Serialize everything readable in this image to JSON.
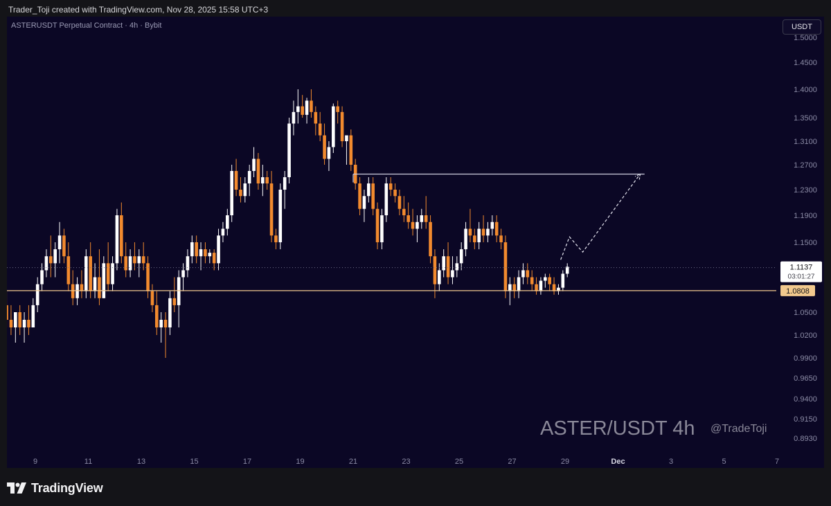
{
  "header": {
    "credit": "Trader_Toji created with TradingView.com, Nov 28, 2025 15:58 UTC+3"
  },
  "chart_header": {
    "symbol_title": "ASTERUSDT Perpetual Contract · 4h · Bybit",
    "unit_button": "USDT"
  },
  "watermark": {
    "pair": "ASTER/USDT 4h",
    "author": "@TradeToji"
  },
  "footer": {
    "brand": "TradingView"
  },
  "colors": {
    "background": "#0b0725",
    "bull": "#ffffff",
    "bear": "#f28a2e",
    "support_line": "#f2c98e",
    "resistance_line": "#cfcfe0",
    "axis_text": "#8c8ca6"
  },
  "chart_data": {
    "type": "candlestick",
    "title": "ASTERUSDT Perpetual Contract · 4h · Bybit",
    "y_ticks": [
      "1.5000",
      "1.4500",
      "1.4000",
      "1.3500",
      "1.3100",
      "1.2700",
      "1.2300",
      "1.1900",
      "1.1500",
      "1.0500",
      "1.0200",
      "0.9900",
      "0.9650",
      "0.9400",
      "0.9150",
      "0.8930"
    ],
    "x_ticks": [
      "9",
      "11",
      "13",
      "15",
      "17",
      "19",
      "21",
      "23",
      "25",
      "27",
      "29",
      "Dec",
      "3",
      "5",
      "7"
    ],
    "x_range": [
      "Nov 7 12:00",
      "Dec 8 00:00"
    ],
    "current_price": {
      "value": "1.1137",
      "countdown": "03:01:27"
    },
    "support": {
      "value": "1.0808",
      "label": "1.0808"
    },
    "resistance": {
      "value": 1.255,
      "from": "Nov 21 00:00",
      "to": "Dec 2 00:00"
    },
    "projection": [
      {
        "time": "Nov 28 20:00",
        "value": 1.125
      },
      {
        "time": "Nov 29 04:00",
        "value": 1.158
      },
      {
        "time": "Nov 29 16:00",
        "value": 1.136
      },
      {
        "time": "Dec 1 20:00",
        "value": 1.255
      }
    ],
    "candles": [
      {
        "o": 1.15,
        "h": 1.16,
        "l": 1.09,
        "c": 1.09
      },
      {
        "o": 1.09,
        "h": 1.1,
        "l": 1.05,
        "c": 1.06
      },
      {
        "o": 1.06,
        "h": 1.08,
        "l": 1.03,
        "c": 1.04
      },
      {
        "o": 1.04,
        "h": 1.06,
        "l": 1.02,
        "c": 1.03
      },
      {
        "o": 1.03,
        "h": 1.05,
        "l": 1.01,
        "c": 1.05
      },
      {
        "o": 1.05,
        "h": 1.06,
        "l": 1.02,
        "c": 1.03
      },
      {
        "o": 1.03,
        "h": 1.05,
        "l": 1.01,
        "c": 1.04
      },
      {
        "o": 1.04,
        "h": 1.06,
        "l": 1.02,
        "c": 1.03
      },
      {
        "o": 1.03,
        "h": 1.07,
        "l": 1.03,
        "c": 1.06
      },
      {
        "o": 1.06,
        "h": 1.1,
        "l": 1.05,
        "c": 1.09
      },
      {
        "o": 1.09,
        "h": 1.12,
        "l": 1.08,
        "c": 1.11
      },
      {
        "o": 1.11,
        "h": 1.14,
        "l": 1.1,
        "c": 1.13
      },
      {
        "o": 1.13,
        "h": 1.16,
        "l": 1.1,
        "c": 1.12
      },
      {
        "o": 1.12,
        "h": 1.15,
        "l": 1.1,
        "c": 1.14
      },
      {
        "o": 1.14,
        "h": 1.18,
        "l": 1.12,
        "c": 1.16
      },
      {
        "o": 1.16,
        "h": 1.17,
        "l": 1.12,
        "c": 1.13
      },
      {
        "o": 1.13,
        "h": 1.15,
        "l": 1.08,
        "c": 1.09
      },
      {
        "o": 1.09,
        "h": 1.11,
        "l": 1.06,
        "c": 1.07
      },
      {
        "o": 1.07,
        "h": 1.1,
        "l": 1.06,
        "c": 1.09
      },
      {
        "o": 1.09,
        "h": 1.11,
        "l": 1.07,
        "c": 1.08
      },
      {
        "o": 1.08,
        "h": 1.14,
        "l": 1.07,
        "c": 1.13
      },
      {
        "o": 1.13,
        "h": 1.15,
        "l": 1.07,
        "c": 1.08
      },
      {
        "o": 1.08,
        "h": 1.12,
        "l": 1.07,
        "c": 1.1
      },
      {
        "o": 1.1,
        "h": 1.14,
        "l": 1.06,
        "c": 1.07
      },
      {
        "o": 1.07,
        "h": 1.13,
        "l": 1.07,
        "c": 1.12
      },
      {
        "o": 1.12,
        "h": 1.15,
        "l": 1.08,
        "c": 1.09
      },
      {
        "o": 1.09,
        "h": 1.13,
        "l": 1.08,
        "c": 1.12
      },
      {
        "o": 1.12,
        "h": 1.2,
        "l": 1.11,
        "c": 1.19
      },
      {
        "o": 1.19,
        "h": 1.21,
        "l": 1.12,
        "c": 1.13
      },
      {
        "o": 1.13,
        "h": 1.15,
        "l": 1.1,
        "c": 1.11
      },
      {
        "o": 1.11,
        "h": 1.14,
        "l": 1.1,
        "c": 1.13
      },
      {
        "o": 1.13,
        "h": 1.15,
        "l": 1.11,
        "c": 1.12
      },
      {
        "o": 1.12,
        "h": 1.14,
        "l": 1.1,
        "c": 1.13
      },
      {
        "o": 1.13,
        "h": 1.15,
        "l": 1.11,
        "c": 1.12
      },
      {
        "o": 1.12,
        "h": 1.13,
        "l": 1.07,
        "c": 1.08
      },
      {
        "o": 1.08,
        "h": 1.09,
        "l": 1.05,
        "c": 1.06
      },
      {
        "o": 1.06,
        "h": 1.08,
        "l": 1.02,
        "c": 1.03
      },
      {
        "o": 1.03,
        "h": 1.05,
        "l": 1.01,
        "c": 1.04
      },
      {
        "o": 1.04,
        "h": 1.05,
        "l": 0.99,
        "c": 1.03
      },
      {
        "o": 1.03,
        "h": 1.08,
        "l": 1.02,
        "c": 1.07
      },
      {
        "o": 1.07,
        "h": 1.1,
        "l": 1.05,
        "c": 1.06
      },
      {
        "o": 1.06,
        "h": 1.11,
        "l": 1.03,
        "c": 1.1
      },
      {
        "o": 1.1,
        "h": 1.12,
        "l": 1.08,
        "c": 1.11
      },
      {
        "o": 1.11,
        "h": 1.14,
        "l": 1.1,
        "c": 1.13
      },
      {
        "o": 1.13,
        "h": 1.16,
        "l": 1.12,
        "c": 1.15
      },
      {
        "o": 1.15,
        "h": 1.16,
        "l": 1.12,
        "c": 1.13
      },
      {
        "o": 1.13,
        "h": 1.15,
        "l": 1.11,
        "c": 1.14
      },
      {
        "o": 1.14,
        "h": 1.15,
        "l": 1.12,
        "c": 1.13
      },
      {
        "o": 1.13,
        "h": 1.14,
        "l": 1.12,
        "c": 1.135
      },
      {
        "o": 1.135,
        "h": 1.14,
        "l": 1.11,
        "c": 1.12
      },
      {
        "o": 1.12,
        "h": 1.17,
        "l": 1.11,
        "c": 1.16
      },
      {
        "o": 1.16,
        "h": 1.18,
        "l": 1.15,
        "c": 1.17
      },
      {
        "o": 1.17,
        "h": 1.2,
        "l": 1.16,
        "c": 1.19
      },
      {
        "o": 1.19,
        "h": 1.27,
        "l": 1.18,
        "c": 1.26
      },
      {
        "o": 1.26,
        "h": 1.28,
        "l": 1.22,
        "c": 1.23
      },
      {
        "o": 1.23,
        "h": 1.25,
        "l": 1.21,
        "c": 1.22
      },
      {
        "o": 1.22,
        "h": 1.25,
        "l": 1.21,
        "c": 1.24
      },
      {
        "o": 1.24,
        "h": 1.27,
        "l": 1.22,
        "c": 1.26
      },
      {
        "o": 1.26,
        "h": 1.3,
        "l": 1.25,
        "c": 1.28
      },
      {
        "o": 1.28,
        "h": 1.29,
        "l": 1.23,
        "c": 1.24
      },
      {
        "o": 1.24,
        "h": 1.27,
        "l": 1.22,
        "c": 1.25
      },
      {
        "o": 1.25,
        "h": 1.26,
        "l": 1.23,
        "c": 1.24
      },
      {
        "o": 1.24,
        "h": 1.26,
        "l": 1.15,
        "c": 1.16
      },
      {
        "o": 1.16,
        "h": 1.17,
        "l": 1.14,
        "c": 1.15
      },
      {
        "o": 1.15,
        "h": 1.24,
        "l": 1.14,
        "c": 1.23
      },
      {
        "o": 1.23,
        "h": 1.26,
        "l": 1.2,
        "c": 1.25
      },
      {
        "o": 1.25,
        "h": 1.35,
        "l": 1.24,
        "c": 1.34
      },
      {
        "o": 1.34,
        "h": 1.38,
        "l": 1.32,
        "c": 1.36
      },
      {
        "o": 1.36,
        "h": 1.4,
        "l": 1.34,
        "c": 1.37
      },
      {
        "o": 1.37,
        "h": 1.39,
        "l": 1.35,
        "c": 1.355
      },
      {
        "o": 1.355,
        "h": 1.385,
        "l": 1.34,
        "c": 1.38
      },
      {
        "o": 1.38,
        "h": 1.4,
        "l": 1.35,
        "c": 1.36
      },
      {
        "o": 1.36,
        "h": 1.37,
        "l": 1.32,
        "c": 1.34
      },
      {
        "o": 1.34,
        "h": 1.36,
        "l": 1.31,
        "c": 1.32
      },
      {
        "o": 1.32,
        "h": 1.34,
        "l": 1.27,
        "c": 1.28
      },
      {
        "o": 1.28,
        "h": 1.31,
        "l": 1.26,
        "c": 1.3
      },
      {
        "o": 1.3,
        "h": 1.375,
        "l": 1.29,
        "c": 1.37
      },
      {
        "o": 1.37,
        "h": 1.38,
        "l": 1.34,
        "c": 1.36
      },
      {
        "o": 1.36,
        "h": 1.37,
        "l": 1.3,
        "c": 1.31
      },
      {
        "o": 1.31,
        "h": 1.32,
        "l": 1.27,
        "c": 1.32
      },
      {
        "o": 1.32,
        "h": 1.33,
        "l": 1.26,
        "c": 1.27
      },
      {
        "o": 1.27,
        "h": 1.28,
        "l": 1.23,
        "c": 1.24
      },
      {
        "o": 1.24,
        "h": 1.25,
        "l": 1.19,
        "c": 1.2
      },
      {
        "o": 1.2,
        "h": 1.23,
        "l": 1.18,
        "c": 1.22
      },
      {
        "o": 1.22,
        "h": 1.25,
        "l": 1.21,
        "c": 1.24
      },
      {
        "o": 1.24,
        "h": 1.25,
        "l": 1.19,
        "c": 1.2
      },
      {
        "o": 1.2,
        "h": 1.21,
        "l": 1.14,
        "c": 1.15
      },
      {
        "o": 1.15,
        "h": 1.2,
        "l": 1.14,
        "c": 1.19
      },
      {
        "o": 1.19,
        "h": 1.25,
        "l": 1.18,
        "c": 1.24
      },
      {
        "o": 1.24,
        "h": 1.25,
        "l": 1.22,
        "c": 1.23
      },
      {
        "o": 1.23,
        "h": 1.24,
        "l": 1.21,
        "c": 1.22
      },
      {
        "o": 1.22,
        "h": 1.23,
        "l": 1.19,
        "c": 1.2
      },
      {
        "o": 1.2,
        "h": 1.22,
        "l": 1.18,
        "c": 1.19
      },
      {
        "o": 1.19,
        "h": 1.21,
        "l": 1.17,
        "c": 1.18
      },
      {
        "o": 1.18,
        "h": 1.2,
        "l": 1.16,
        "c": 1.17
      },
      {
        "o": 1.17,
        "h": 1.19,
        "l": 1.15,
        "c": 1.18
      },
      {
        "o": 1.18,
        "h": 1.2,
        "l": 1.17,
        "c": 1.19
      },
      {
        "o": 1.19,
        "h": 1.22,
        "l": 1.17,
        "c": 1.18
      },
      {
        "o": 1.18,
        "h": 1.19,
        "l": 1.12,
        "c": 1.13
      },
      {
        "o": 1.13,
        "h": 1.14,
        "l": 1.07,
        "c": 1.09
      },
      {
        "o": 1.09,
        "h": 1.12,
        "l": 1.08,
        "c": 1.11
      },
      {
        "o": 1.11,
        "h": 1.14,
        "l": 1.1,
        "c": 1.13
      },
      {
        "o": 1.13,
        "h": 1.15,
        "l": 1.09,
        "c": 1.1
      },
      {
        "o": 1.1,
        "h": 1.13,
        "l": 1.09,
        "c": 1.11
      },
      {
        "o": 1.11,
        "h": 1.13,
        "l": 1.1,
        "c": 1.12
      },
      {
        "o": 1.12,
        "h": 1.15,
        "l": 1.11,
        "c": 1.14
      },
      {
        "o": 1.14,
        "h": 1.18,
        "l": 1.13,
        "c": 1.17
      },
      {
        "o": 1.17,
        "h": 1.2,
        "l": 1.15,
        "c": 1.16
      },
      {
        "o": 1.16,
        "h": 1.17,
        "l": 1.14,
        "c": 1.15
      },
      {
        "o": 1.15,
        "h": 1.18,
        "l": 1.14,
        "c": 1.17
      },
      {
        "o": 1.17,
        "h": 1.19,
        "l": 1.15,
        "c": 1.16
      },
      {
        "o": 1.16,
        "h": 1.18,
        "l": 1.15,
        "c": 1.17
      },
      {
        "o": 1.17,
        "h": 1.19,
        "l": 1.16,
        "c": 1.18
      },
      {
        "o": 1.18,
        "h": 1.19,
        "l": 1.15,
        "c": 1.16
      },
      {
        "o": 1.16,
        "h": 1.17,
        "l": 1.14,
        "c": 1.15
      },
      {
        "o": 1.15,
        "h": 1.16,
        "l": 1.07,
        "c": 1.08
      },
      {
        "o": 1.08,
        "h": 1.1,
        "l": 1.06,
        "c": 1.09
      },
      {
        "o": 1.09,
        "h": 1.1,
        "l": 1.07,
        "c": 1.08
      },
      {
        "o": 1.08,
        "h": 1.11,
        "l": 1.07,
        "c": 1.1
      },
      {
        "o": 1.1,
        "h": 1.12,
        "l": 1.09,
        "c": 1.11
      },
      {
        "o": 1.11,
        "h": 1.12,
        "l": 1.09,
        "c": 1.1
      },
      {
        "o": 1.1,
        "h": 1.11,
        "l": 1.08,
        "c": 1.09
      },
      {
        "o": 1.09,
        "h": 1.1,
        "l": 1.075,
        "c": 1.08
      },
      {
        "o": 1.08,
        "h": 1.1,
        "l": 1.075,
        "c": 1.095
      },
      {
        "o": 1.095,
        "h": 1.105,
        "l": 1.085,
        "c": 1.1
      },
      {
        "o": 1.1,
        "h": 1.105,
        "l": 1.08,
        "c": 1.09
      },
      {
        "o": 1.09,
        "h": 1.1,
        "l": 1.075,
        "c": 1.08
      },
      {
        "o": 1.08,
        "h": 1.09,
        "l": 1.075,
        "c": 1.085
      },
      {
        "o": 1.085,
        "h": 1.11,
        "l": 1.08,
        "c": 1.105
      },
      {
        "o": 1.105,
        "h": 1.12,
        "l": 1.1,
        "c": 1.115
      }
    ]
  }
}
